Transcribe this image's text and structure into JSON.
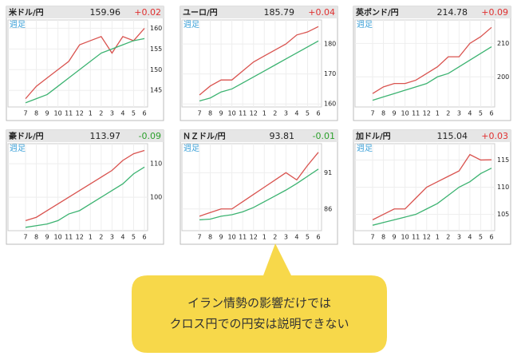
{
  "chart_data": [
    {
      "type": "line",
      "title": "米ドル/円",
      "price": "159.96",
      "change": "+0.02",
      "change_color": "#e03030",
      "period": "週足",
      "categories": [
        "7",
        "8",
        "9",
        "10",
        "11",
        "12",
        "1",
        "2",
        "3",
        "4",
        "5",
        "6"
      ],
      "series": [
        {
          "color": "#d9534f",
          "values": [
            143,
            146,
            148,
            150,
            152,
            156,
            157,
            158,
            154,
            158,
            157,
            159.96
          ]
        },
        {
          "color": "#3cb371",
          "values": [
            142,
            143,
            144,
            146,
            148,
            150,
            152,
            154,
            155,
            156,
            157,
            157.5
          ]
        }
      ],
      "ylim": [
        141,
        162
      ],
      "yticks": [
        145,
        150,
        155,
        160
      ],
      "grid": true
    },
    {
      "type": "line",
      "title": "ユーロ/円",
      "price": "185.79",
      "change": "+0.04",
      "change_color": "#e03030",
      "period": "週足",
      "categories": [
        "7",
        "8",
        "9",
        "10",
        "11",
        "12",
        "1",
        "2",
        "3",
        "4",
        "5",
        "6"
      ],
      "series": [
        {
          "color": "#d9534f",
          "values": [
            163,
            166,
            168,
            168,
            171,
            174,
            176,
            178,
            180,
            183,
            184,
            185.79
          ]
        },
        {
          "color": "#3cb371",
          "values": [
            161,
            162,
            164,
            165,
            167,
            169,
            171,
            173,
            175,
            177,
            179,
            181
          ]
        }
      ],
      "ylim": [
        159,
        188
      ],
      "yticks": [
        160,
        170,
        180
      ],
      "grid": true
    },
    {
      "type": "line",
      "title": "英ポンド/円",
      "price": "214.78",
      "change": "+0.09",
      "change_color": "#e03030",
      "period": "週足",
      "categories": [
        "7",
        "8",
        "9",
        "10",
        "11",
        "12",
        "1",
        "2",
        "3",
        "4",
        "5",
        "6"
      ],
      "series": [
        {
          "color": "#d9534f",
          "values": [
            195,
            197,
            198,
            198,
            199,
            201,
            203,
            206,
            206,
            210,
            212,
            214.78
          ]
        },
        {
          "color": "#3cb371",
          "values": [
            193,
            194,
            195,
            196,
            197,
            198,
            200,
            201,
            203,
            205,
            207,
            209
          ]
        }
      ],
      "ylim": [
        191,
        217
      ],
      "yticks": [
        200,
        210
      ],
      "grid": true
    },
    {
      "type": "line",
      "title": "豪ドル/円",
      "price": "113.97",
      "change": "-0.09",
      "change_color": "#2ca02c",
      "period": "週足",
      "categories": [
        "7",
        "8",
        "9",
        "10",
        "11",
        "12",
        "1",
        "2",
        "3",
        "4",
        "5",
        "6"
      ],
      "series": [
        {
          "color": "#d9534f",
          "values": [
            93,
            94,
            96,
            98,
            100,
            102,
            104,
            106,
            108,
            111,
            113,
            113.97
          ]
        },
        {
          "color": "#3cb371",
          "values": [
            91,
            91.5,
            92,
            93,
            95,
            96,
            98,
            100,
            102,
            104,
            107,
            109
          ]
        }
      ],
      "ylim": [
        90,
        116
      ],
      "yticks": [
        100,
        110
      ],
      "grid": true
    },
    {
      "type": "line",
      "title": "ＮＺドル/円",
      "price": "93.81",
      "change": "-0.01",
      "change_color": "#2ca02c",
      "period": "週足",
      "categories": [
        "7",
        "8",
        "9",
        "10",
        "11",
        "12",
        "1",
        "2",
        "3",
        "4",
        "5",
        "6"
      ],
      "series": [
        {
          "color": "#d9534f",
          "values": [
            85,
            85.5,
            86,
            86,
            87,
            88,
            89,
            90,
            91,
            90,
            92,
            93.81
          ]
        },
        {
          "color": "#3cb371",
          "values": [
            84.5,
            84.6,
            85,
            85.2,
            85.6,
            86.2,
            87,
            87.8,
            88.6,
            89.5,
            90.5,
            91.5
          ]
        }
      ],
      "ylim": [
        83,
        95
      ],
      "yticks": [
        86,
        91
      ],
      "grid": true
    },
    {
      "type": "line",
      "title": "加ドル/円",
      "price": "115.04",
      "change": "+0.03",
      "change_color": "#e03030",
      "period": "週足",
      "categories": [
        "7",
        "8",
        "9",
        "10",
        "11",
        "12",
        "1",
        "2",
        "3",
        "4",
        "5",
        "6"
      ],
      "series": [
        {
          "color": "#d9534f",
          "values": [
            104,
            105,
            106,
            106,
            108,
            110,
            111,
            112,
            113,
            116,
            115,
            115.04
          ]
        },
        {
          "color": "#3cb371",
          "values": [
            103,
            103.5,
            104,
            104.5,
            105,
            106,
            107,
            108.5,
            110,
            111,
            112.5,
            113.5
          ]
        }
      ],
      "ylim": [
        102,
        118
      ],
      "yticks": [
        105,
        110,
        115
      ],
      "grid": true
    }
  ],
  "callout": {
    "lines": [
      "イラン情勢の影響だけでは",
      "クロス円での円安は説明できない"
    ]
  }
}
